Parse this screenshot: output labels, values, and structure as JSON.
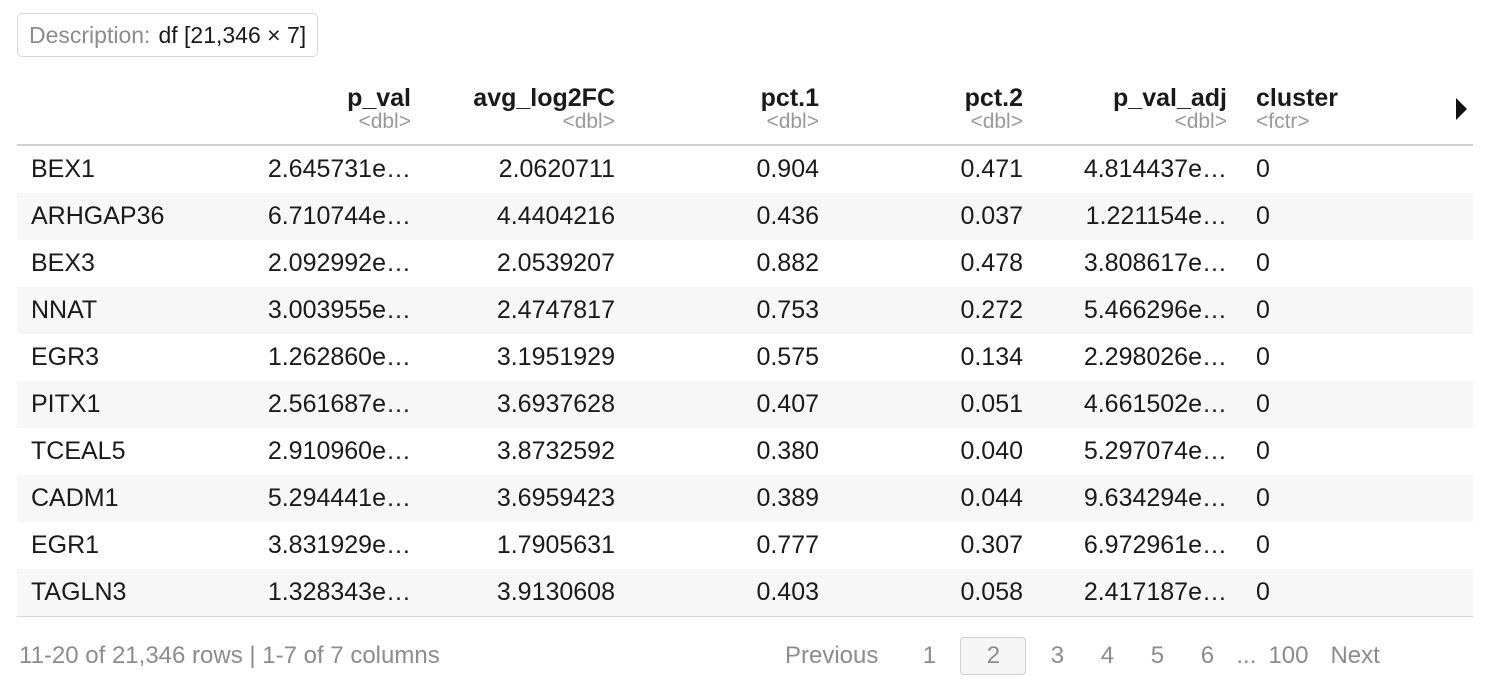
{
  "description": {
    "label": "Description:",
    "value": "df [21,346 × 7]"
  },
  "columns": [
    {
      "name": "",
      "type": ""
    },
    {
      "name": "p_val",
      "type": "<dbl>"
    },
    {
      "name": "avg_log2FC",
      "type": "<dbl>"
    },
    {
      "name": "pct.1",
      "type": "<dbl>"
    },
    {
      "name": "pct.2",
      "type": "<dbl>"
    },
    {
      "name": "p_val_adj",
      "type": "<dbl>"
    },
    {
      "name": "cluster",
      "type": "<fctr>"
    }
  ],
  "rows": [
    [
      "BEX1",
      "2.645731e…",
      "2.0620711",
      "0.904",
      "0.471",
      "4.814437e…",
      "0"
    ],
    [
      "ARHGAP36",
      "6.710744e…",
      "4.4404216",
      "0.436",
      "0.037",
      "1.221154e…",
      "0"
    ],
    [
      "BEX3",
      "2.092992e…",
      "2.0539207",
      "0.882",
      "0.478",
      "3.808617e…",
      "0"
    ],
    [
      "NNAT",
      "3.003955e…",
      "2.4747817",
      "0.753",
      "0.272",
      "5.466296e…",
      "0"
    ],
    [
      "EGR3",
      "1.262860e…",
      "3.1951929",
      "0.575",
      "0.134",
      "2.298026e…",
      "0"
    ],
    [
      "PITX1",
      "2.561687e…",
      "3.6937628",
      "0.407",
      "0.051",
      "4.661502e…",
      "0"
    ],
    [
      "TCEAL5",
      "2.910960e…",
      "3.8732592",
      "0.380",
      "0.040",
      "5.297074e…",
      "0"
    ],
    [
      "CADM1",
      "5.294441e…",
      "3.6959423",
      "0.389",
      "0.044",
      "9.634294e…",
      "0"
    ],
    [
      "EGR1",
      "3.831929e…",
      "1.7905631",
      "0.777",
      "0.307",
      "6.972961e…",
      "0"
    ],
    [
      "TAGLN3",
      "1.328343e…",
      "3.9130608",
      "0.403",
      "0.058",
      "2.417187e…",
      "0"
    ]
  ],
  "footer": {
    "info": "11-20 of 21,346 rows | 1-7 of 7 columns",
    "previous": "Previous",
    "pages": [
      "1",
      "2",
      "3",
      "4",
      "5",
      "6"
    ],
    "current_page": "2",
    "ellipsis": "...",
    "last_page": "100",
    "next": "Next"
  },
  "icons": {
    "scroll_right": "triangle-right-icon"
  }
}
